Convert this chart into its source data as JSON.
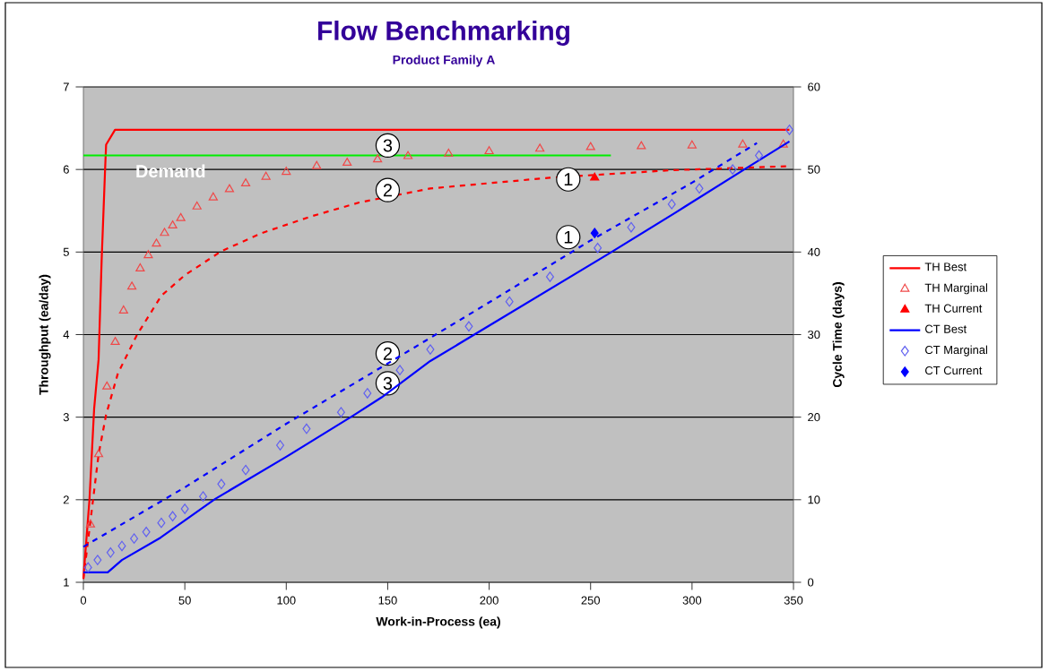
{
  "chart_data": {
    "type": "line",
    "title": "Flow Benchmarking",
    "subtitle": "Product Family A",
    "xlabel": "Work-in-Process (ea)",
    "ylabel": "Throughput (ea/day)",
    "y2label": "Cycle Time (days)",
    "xlim": [
      0,
      350
    ],
    "xticks": [
      0,
      50,
      100,
      150,
      200,
      250,
      300,
      350
    ],
    "ylim": [
      1,
      7
    ],
    "yticks": [
      1,
      2,
      3,
      4,
      5,
      6,
      7
    ],
    "y2lim": [
      0,
      60
    ],
    "y2ticks": [
      0,
      10,
      20,
      30,
      40,
      50,
      60
    ],
    "grid": "y",
    "legend": "right",
    "series": [
      {
        "name": "TH Best",
        "color": "#ff0000",
        "marker": "none",
        "line_style": "solid",
        "x": [
          0,
          3,
          5.3,
          7.5,
          9,
          10.7,
          11.2,
          15.6,
          348
        ],
        "values": [
          1.05,
          2.0,
          3.1,
          3.7,
          4.9,
          6.0,
          6.3,
          6.48,
          6.48
        ]
      },
      {
        "name": "TH Marginal",
        "type": "scatter",
        "color": "#f04848",
        "marker": "triangle",
        "x": [
          3.5,
          7.5,
          11.6,
          15.7,
          19.8,
          23.9,
          28,
          32,
          36,
          40,
          44,
          48,
          56,
          64,
          72,
          80,
          90,
          100,
          115,
          130,
          145,
          160,
          180,
          200,
          225,
          250,
          275,
          300,
          325,
          345
        ],
        "values": [
          1.7,
          2.55,
          3.37,
          3.91,
          4.29,
          4.58,
          4.8,
          4.96,
          5.1,
          5.23,
          5.32,
          5.41,
          5.55,
          5.66,
          5.76,
          5.83,
          5.91,
          5.97,
          6.04,
          6.08,
          6.12,
          6.16,
          6.19,
          6.22,
          6.25,
          6.27,
          6.28,
          6.29,
          6.3,
          6.3
        ]
      },
      {
        "name": "TH Current",
        "type": "scatter",
        "color": "#ff0000",
        "marker": "triangle",
        "x": [
          252
        ],
        "values": [
          5.9
        ]
      },
      {
        "name": "CT Best",
        "axis": "y2",
        "color": "#0000ff",
        "marker": "none",
        "line_style": "solid",
        "x": [
          0,
          2,
          12,
          19,
          38,
          65,
          100,
          133,
          147,
          171,
          259,
          292,
          327,
          348
        ],
        "values": [
          1.2,
          1.2,
          1.2,
          2.7,
          5.4,
          10.1,
          15.2,
          20.2,
          22.4,
          26.8,
          39.8,
          44.8,
          50.2,
          53.4
        ]
      },
      {
        "name": "CT Marginal",
        "type": "scatter",
        "axis": "y2",
        "color": "#6060f0",
        "marker": "diamond",
        "x": [
          2.3,
          7,
          13.4,
          19,
          25,
          31,
          38.4,
          44,
          50,
          59,
          68,
          80,
          97,
          110,
          127,
          140,
          156,
          171,
          190,
          210,
          230,
          253.5,
          270,
          290,
          303.6,
          320,
          333,
          348
        ],
        "values": [
          1.8,
          2.7,
          3.6,
          4.4,
          5.3,
          6.1,
          7.2,
          8.0,
          8.9,
          10.4,
          11.9,
          13.6,
          16.6,
          18.6,
          20.6,
          22.9,
          25.7,
          28.2,
          31.0,
          34.0,
          37.0,
          40.5,
          43.0,
          45.8,
          47.7,
          50.0,
          51.7,
          54.8
        ]
      },
      {
        "name": "CT Current",
        "type": "scatter",
        "axis": "y2",
        "color": "#0000ff",
        "marker": "diamond",
        "x": [
          252
        ],
        "values": [
          42.3
        ]
      },
      {
        "color": "#ff0000",
        "marker": "none",
        "line_style": "dashed",
        "x": [
          0,
          7.5,
          11.2,
          17,
          26.5,
          38.4,
          50,
          68,
          88,
          112,
          136,
          171,
          230,
          289,
          348
        ],
        "values": [
          1.04,
          2.55,
          3.03,
          3.53,
          4.0,
          4.47,
          4.72,
          5.01,
          5.23,
          5.43,
          5.6,
          5.77,
          5.9,
          5.99,
          6.04
        ]
      },
      {
        "axis": "y2",
        "color": "#0000ff",
        "marker": "none",
        "line_style": "dashed",
        "x": [
          0,
          50,
          100,
          150,
          200,
          250,
          300,
          332
        ],
        "values": [
          4.3,
          11.5,
          19.2,
          26.5,
          33.9,
          41.4,
          48.4,
          53.2
        ]
      },
      {
        "color": "#00ee00",
        "marker": "none",
        "line_style": "solid",
        "x": [
          0,
          260
        ],
        "values": [
          6.17,
          6.17
        ]
      }
    ],
    "annotations": [
      {
        "text": "Demand",
        "x": 43,
        "y": 6.17
      },
      {
        "text": "3",
        "x": 150,
        "y": 6.29
      },
      {
        "text": "2",
        "x": 150,
        "y": 5.75
      },
      {
        "text": "1",
        "x": 239,
        "y": 5.88
      },
      {
        "text": "1",
        "x": 239,
        "y": 5.18
      },
      {
        "text": "2",
        "x": 150,
        "y": 3.77
      },
      {
        "text": "3",
        "x": 150,
        "y": 3.41
      }
    ]
  }
}
